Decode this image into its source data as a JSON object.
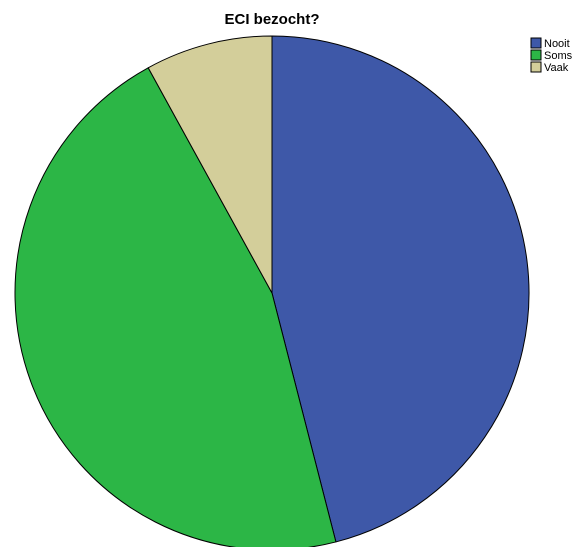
{
  "chart_data": {
    "type": "pie",
    "title": "ECI bezocht?",
    "categories": [
      "Nooit",
      "Soms",
      "Vaak"
    ],
    "values": [
      46,
      46,
      8
    ],
    "colors": [
      "#3e58a8",
      "#2cb646",
      "#d3ce9a"
    ],
    "legend_position": "top-right"
  }
}
